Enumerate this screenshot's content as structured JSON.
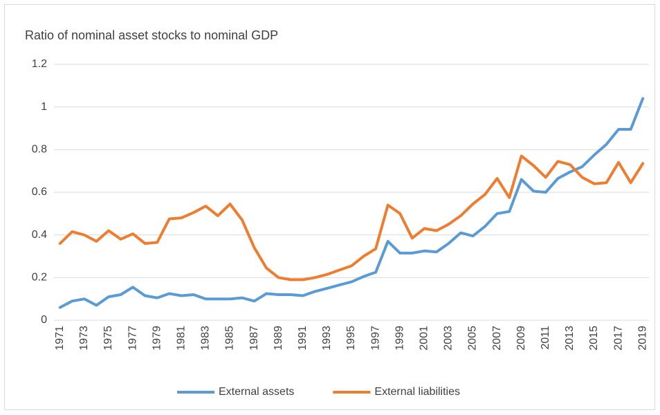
{
  "chart_data": {
    "type": "line",
    "title": "Ratio of nominal asset stocks to nominal GDP",
    "categories": [
      "1971",
      null,
      "1973",
      null,
      "1975",
      null,
      "1977",
      null,
      "1979",
      null,
      "1981",
      null,
      "1983",
      null,
      "1985",
      null,
      "1987",
      null,
      "1989",
      null,
      "1991",
      null,
      "1993",
      null,
      "1995",
      null,
      "1997",
      null,
      "1999",
      null,
      "2001",
      null,
      "2003",
      null,
      "2005",
      null,
      "2007",
      null,
      "2009",
      null,
      "2011",
      null,
      "2013",
      null,
      "2015",
      null,
      "2017",
      null,
      "2019"
    ],
    "series": [
      {
        "name": "External assets",
        "color": "#5b9bd5",
        "values": [
          0.06,
          0.09,
          0.1,
          0.07,
          0.11,
          0.12,
          0.155,
          0.115,
          0.105,
          0.125,
          0.115,
          0.12,
          0.1,
          0.1,
          0.1,
          0.105,
          0.09,
          0.125,
          0.12,
          0.12,
          0.115,
          0.135,
          0.15,
          0.165,
          0.18,
          0.205,
          0.225,
          0.37,
          0.315,
          0.315,
          0.325,
          0.32,
          0.36,
          0.41,
          0.395,
          0.44,
          0.5,
          0.51,
          0.66,
          0.605,
          0.6,
          0.665,
          0.695,
          0.72,
          0.775,
          0.825,
          0.895,
          0.895,
          1.04
        ]
      },
      {
        "name": "External liabilities",
        "color": "#ed7d31",
        "values": [
          0.36,
          0.415,
          0.4,
          0.37,
          0.42,
          0.38,
          0.405,
          0.36,
          0.365,
          0.475,
          0.48,
          0.505,
          0.535,
          0.49,
          0.545,
          0.47,
          0.34,
          0.245,
          0.2,
          0.19,
          0.19,
          0.2,
          0.215,
          0.235,
          0.255,
          0.3,
          0.335,
          0.54,
          0.5,
          0.385,
          0.43,
          0.42,
          0.45,
          0.49,
          0.545,
          0.59,
          0.665,
          0.575,
          0.77,
          0.725,
          0.67,
          0.745,
          0.73,
          0.67,
          0.64,
          0.645,
          0.74,
          0.645,
          0.735
        ]
      }
    ],
    "ylim": [
      0,
      1.2
    ],
    "yticks": [
      0,
      0.2,
      0.4,
      0.6,
      0.8,
      1,
      1.2
    ],
    "grid": true,
    "legend": "bottom"
  }
}
